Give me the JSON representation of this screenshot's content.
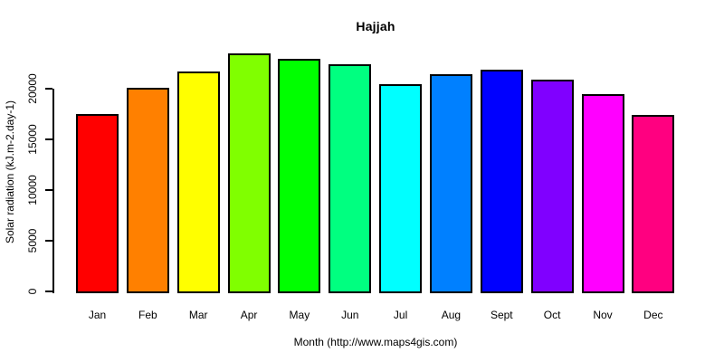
{
  "page": {
    "background_color": "#ffffff",
    "text_color": "#000000"
  },
  "chart_data": {
    "type": "bar",
    "title": "Hajjah",
    "xlabel": "Month (http://www.maps4gis.com)",
    "ylabel": "Solar radiation (kJ.m-2.day-1)",
    "categories": [
      "Jan",
      "Feb",
      "Mar",
      "Apr",
      "May",
      "Jun",
      "Jul",
      "Aug",
      "Sept",
      "Oct",
      "Nov",
      "Dec"
    ],
    "values": [
      17500,
      20100,
      21700,
      23500,
      23000,
      22400,
      20500,
      21500,
      21900,
      20900,
      19500,
      17400
    ],
    "bar_colors": [
      "#FF0000",
      "#FF8000",
      "#FFFF00",
      "#80FF00",
      "#00FF00",
      "#00FF80",
      "#00FFFF",
      "#0080FF",
      "#0000FF",
      "#8000FF",
      "#FF00FF",
      "#FF0080"
    ],
    "bar_border_color": "#000000",
    "axis_color": "#000000",
    "yticks": [
      0,
      5000,
      10000,
      15000,
      20000
    ],
    "ylim": [
      0,
      24000
    ],
    "grid": false,
    "legend": false,
    "y_tick_label_orientation": "vertical",
    "x_axis_line": false
  }
}
